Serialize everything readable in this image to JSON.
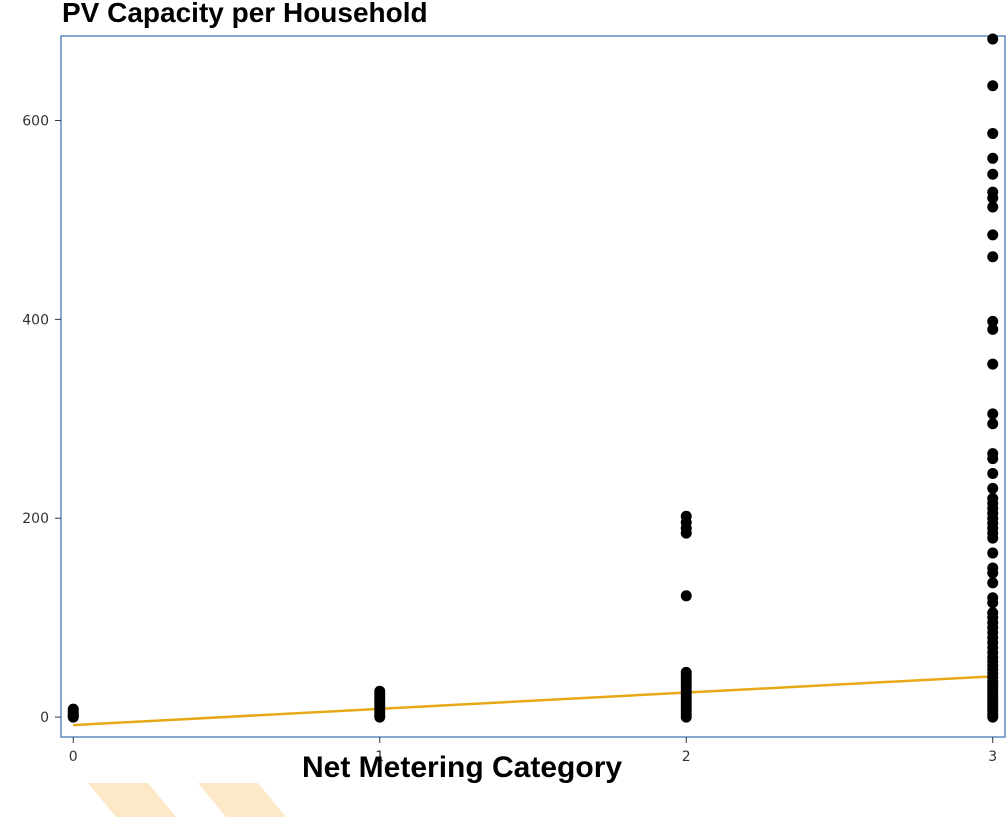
{
  "chart_data": {
    "type": "scatter",
    "title": "PV Capacity per Household",
    "xlabel": "Net Metering Category",
    "ylabel": "",
    "xlim": [
      -0.04,
      3.04
    ],
    "ylim": [
      -20,
      685
    ],
    "xticks": [
      0,
      1,
      2,
      3
    ],
    "yticks": [
      0,
      200,
      400,
      600
    ],
    "xtick_labels": [
      "0",
      "1",
      "2",
      "3"
    ],
    "ytick_labels": [
      "0",
      "200",
      "400",
      "600"
    ],
    "grid": false,
    "legend": "none",
    "point_color": "#000000",
    "trend_color": "#e6a817",
    "frame_color": "#5b8bc2",
    "points": {
      "x0": [
        0,
        1,
        2,
        4,
        6,
        8
      ],
      "x1": [
        0,
        2,
        5,
        8,
        11,
        14,
        17,
        20,
        23,
        26
      ],
      "x2": [
        0,
        3,
        6,
        9,
        12,
        15,
        18,
        21,
        24,
        27,
        30,
        33,
        36,
        39,
        42,
        45,
        122,
        185,
        190,
        196,
        202
      ],
      "x3": [
        0,
        3,
        6,
        9,
        12,
        15,
        18,
        21,
        24,
        27,
        30,
        33,
        36,
        40,
        44,
        48,
        52,
        56,
        60,
        65,
        70,
        75,
        80,
        85,
        90,
        95,
        100,
        105,
        115,
        120,
        135,
        145,
        150,
        165,
        180,
        185,
        190,
        195,
        200,
        205,
        210,
        215,
        220,
        230,
        245,
        260,
        265,
        295,
        305,
        355,
        390,
        398,
        463,
        485,
        513,
        522,
        528,
        546,
        562,
        587,
        635,
        682
      ]
    },
    "trend_line": {
      "x": [
        0,
        3
      ],
      "y": [
        -8,
        41
      ]
    }
  }
}
